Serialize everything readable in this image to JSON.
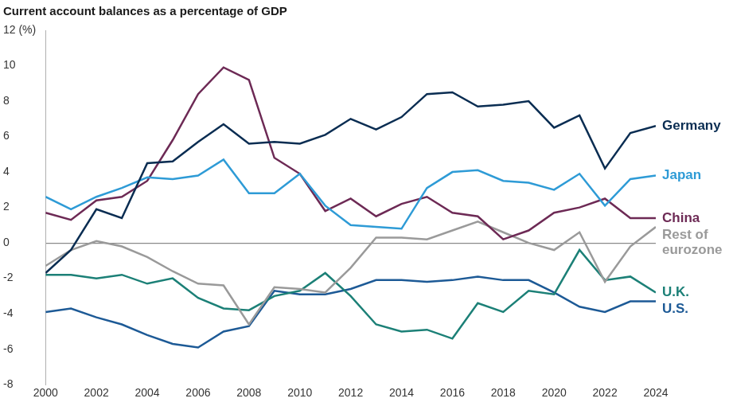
{
  "chart_data": {
    "type": "line",
    "title": "Current account balances as a percentage of GDP",
    "x": [
      2000,
      2001,
      2002,
      2003,
      2004,
      2005,
      2006,
      2007,
      2008,
      2009,
      2010,
      2011,
      2012,
      2013,
      2014,
      2015,
      2016,
      2017,
      2018,
      2019,
      2020,
      2021,
      2022,
      2023,
      2024
    ],
    "series": [
      {
        "name": "Germany",
        "color": "#0a2d52",
        "values": [
          -1.7,
          -0.4,
          1.9,
          1.4,
          4.5,
          4.6,
          5.7,
          6.7,
          5.6,
          5.7,
          5.6,
          6.1,
          7.0,
          6.4,
          7.1,
          8.4,
          8.5,
          7.7,
          7.8,
          8.0,
          6.5,
          7.2,
          4.2,
          6.2,
          6.6
        ]
      },
      {
        "name": "Japan",
        "color": "#2e9bd6",
        "values": [
          2.6,
          1.9,
          2.6,
          3.1,
          3.7,
          3.6,
          3.8,
          4.7,
          2.8,
          2.8,
          3.9,
          2.1,
          1.0,
          0.9,
          0.8,
          3.1,
          4.0,
          4.1,
          3.5,
          3.4,
          3.0,
          3.9,
          2.1,
          3.6,
          3.8
        ]
      },
      {
        "name": "China",
        "color": "#6d2a55",
        "values": [
          1.7,
          1.3,
          2.4,
          2.6,
          3.5,
          5.8,
          8.4,
          9.9,
          9.2,
          4.8,
          3.9,
          1.8,
          2.5,
          1.5,
          2.2,
          2.6,
          1.7,
          1.5,
          0.2,
          0.7,
          1.7,
          2.0,
          2.5,
          1.4,
          1.4
        ]
      },
      {
        "name": "Rest of eurozone",
        "color": "#9a9a9a",
        "values": [
          -1.3,
          -0.4,
          0.1,
          -0.2,
          -0.8,
          -1.6,
          -2.3,
          -2.4,
          -4.6,
          -2.5,
          -2.6,
          -2.8,
          -1.4,
          0.3,
          0.3,
          0.2,
          0.7,
          1.2,
          0.6,
          0.0,
          -0.4,
          0.6,
          -2.2,
          -0.2,
          0.9
        ]
      },
      {
        "name": "U.K.",
        "color": "#1c8077",
        "values": [
          -1.8,
          -1.8,
          -2.0,
          -1.8,
          -2.3,
          -2.0,
          -3.1,
          -3.7,
          -3.8,
          -3.0,
          -2.7,
          -1.7,
          -3.0,
          -4.6,
          -5.0,
          -4.9,
          -5.4,
          -3.4,
          -3.9,
          -2.7,
          -2.9,
          -0.4,
          -2.1,
          -1.9,
          -2.8
        ]
      },
      {
        "name": "U.S.",
        "color": "#1d5a96",
        "values": [
          -3.9,
          -3.7,
          -4.2,
          -4.6,
          -5.2,
          -5.7,
          -5.9,
          -5.0,
          -4.7,
          -2.7,
          -2.9,
          -2.9,
          -2.6,
          -2.1,
          -2.1,
          -2.2,
          -2.1,
          -1.9,
          -2.1,
          -2.1,
          -2.8,
          -3.6,
          -3.9,
          -3.3,
          -3.3
        ]
      }
    ],
    "xlim": [
      2000,
      2024
    ],
    "xticks": [
      2000,
      2002,
      2004,
      2006,
      2008,
      2010,
      2012,
      2014,
      2016,
      2018,
      2020,
      2022,
      2024
    ],
    "ylim": [
      -8,
      12
    ],
    "yticks": [
      -8,
      -6,
      -4,
      -2,
      0,
      2,
      4,
      6,
      8,
      10,
      {
        "value": 12,
        "label": "12 (%)"
      }
    ],
    "grid": false
  }
}
